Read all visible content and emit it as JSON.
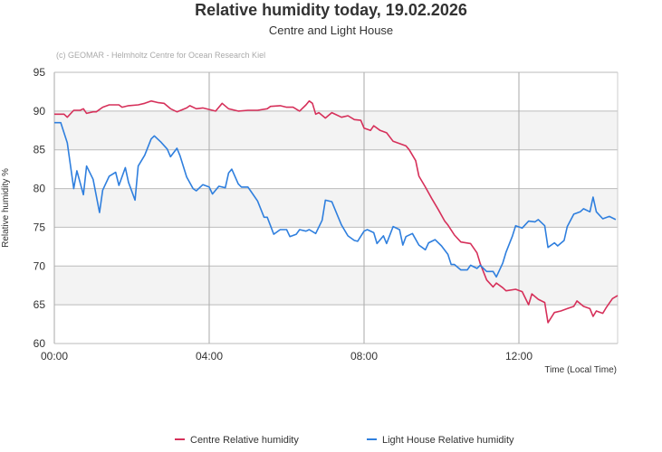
{
  "chart_data": {
    "type": "line",
    "title": "Relative humidity today, 19.02.2026",
    "subtitle": "Centre and Light House",
    "credit": "(c) GEOMAR - Helmholtz Centre for Ocean Research Kiel",
    "xlabel": "Time (Local Time)",
    "ylabel": "Relative humidity %",
    "xlim": [
      "00:00",
      "14:33"
    ],
    "ylim": [
      60,
      95
    ],
    "x_ticks": [
      "00:00",
      "04:00",
      "08:00",
      "12:00"
    ],
    "y_ticks": [
      60,
      65,
      70,
      75,
      80,
      85,
      90,
      95
    ],
    "grid": true,
    "legend_position": "bottom",
    "colors": {
      "Centre": "#d6305a",
      "Light House": "#2f7fde",
      "band": "#f3f3f3"
    },
    "series": [
      {
        "name": "Centre Relative humidity",
        "color": "#d6305a",
        "points": [
          [
            "00:00",
            89.6
          ],
          [
            "00:15",
            89.6
          ],
          [
            "00:20",
            89.2
          ],
          [
            "00:30",
            90.1
          ],
          [
            "00:40",
            90.1
          ],
          [
            "00:45",
            90.3
          ],
          [
            "00:50",
            89.7
          ],
          [
            "01:00",
            89.9
          ],
          [
            "01:05",
            89.9
          ],
          [
            "01:15",
            90.5
          ],
          [
            "01:25",
            90.8
          ],
          [
            "01:40",
            90.8
          ],
          [
            "01:45",
            90.5
          ],
          [
            "01:55",
            90.7
          ],
          [
            "02:10",
            90.8
          ],
          [
            "02:20",
            91.0
          ],
          [
            "02:30",
            91.3
          ],
          [
            "02:40",
            91.1
          ],
          [
            "02:50",
            91.0
          ],
          [
            "03:00",
            90.3
          ],
          [
            "03:10",
            89.9
          ],
          [
            "03:25",
            90.4
          ],
          [
            "03:30",
            90.7
          ],
          [
            "03:40",
            90.3
          ],
          [
            "03:50",
            90.4
          ],
          [
            "04:10",
            90.0
          ],
          [
            "04:20",
            91.0
          ],
          [
            "04:30",
            90.3
          ],
          [
            "04:45",
            90.0
          ],
          [
            "05:00",
            90.1
          ],
          [
            "05:15",
            90.1
          ],
          [
            "05:30",
            90.3
          ],
          [
            "05:35",
            90.6
          ],
          [
            "05:50",
            90.7
          ],
          [
            "06:00",
            90.5
          ],
          [
            "06:10",
            90.5
          ],
          [
            "06:20",
            90.0
          ],
          [
            "06:30",
            90.8
          ],
          [
            "06:35",
            91.3
          ],
          [
            "06:40",
            91.0
          ],
          [
            "06:45",
            89.6
          ],
          [
            "06:50",
            89.8
          ],
          [
            "07:00",
            89.1
          ],
          [
            "07:10",
            89.8
          ],
          [
            "07:25",
            89.2
          ],
          [
            "07:35",
            89.4
          ],
          [
            "07:45",
            88.9
          ],
          [
            "07:55",
            88.8
          ],
          [
            "08:00",
            87.8
          ],
          [
            "08:10",
            87.5
          ],
          [
            "08:15",
            88.1
          ],
          [
            "08:25",
            87.5
          ],
          [
            "08:35",
            87.2
          ],
          [
            "08:45",
            86.1
          ],
          [
            "09:05",
            85.5
          ],
          [
            "09:10",
            85.0
          ],
          [
            "09:20",
            83.6
          ],
          [
            "09:25",
            81.6
          ],
          [
            "09:35",
            80.2
          ],
          [
            "09:45",
            78.7
          ],
          [
            "09:55",
            77.3
          ],
          [
            "10:05",
            75.8
          ],
          [
            "10:10",
            75.3
          ],
          [
            "10:20",
            74.0
          ],
          [
            "10:30",
            73.1
          ],
          [
            "10:45",
            72.9
          ],
          [
            "10:55",
            71.7
          ],
          [
            "11:00",
            70.3
          ],
          [
            "11:10",
            68.2
          ],
          [
            "11:20",
            67.3
          ],
          [
            "11:25",
            67.8
          ],
          [
            "11:35",
            67.2
          ],
          [
            "11:40",
            66.8
          ],
          [
            "11:55",
            67.0
          ],
          [
            "12:05",
            66.7
          ],
          [
            "12:15",
            65.0
          ],
          [
            "12:20",
            66.4
          ],
          [
            "12:30",
            65.7
          ],
          [
            "12:40",
            65.3
          ],
          [
            "12:45",
            62.7
          ],
          [
            "12:55",
            64.0
          ],
          [
            "13:05",
            64.2
          ],
          [
            "13:15",
            64.5
          ],
          [
            "13:25",
            64.8
          ],
          [
            "13:30",
            65.5
          ],
          [
            "13:40",
            64.8
          ],
          [
            "13:50",
            64.5
          ],
          [
            "13:55",
            63.5
          ],
          [
            "14:00",
            64.2
          ],
          [
            "14:10",
            63.9
          ],
          [
            "14:15",
            64.6
          ],
          [
            "14:25",
            65.8
          ],
          [
            "14:33",
            66.2
          ]
        ]
      },
      {
        "name": "Light House Relative humidity",
        "color": "#2f7fde",
        "points": [
          [
            "00:00",
            88.5
          ],
          [
            "00:10",
            88.5
          ],
          [
            "00:20",
            85.9
          ],
          [
            "00:30",
            80.0
          ],
          [
            "00:35",
            82.3
          ],
          [
            "00:45",
            79.2
          ],
          [
            "00:50",
            82.9
          ],
          [
            "01:00",
            81.2
          ],
          [
            "01:10",
            76.9
          ],
          [
            "01:15",
            79.8
          ],
          [
            "01:25",
            81.6
          ],
          [
            "01:35",
            82.1
          ],
          [
            "01:40",
            80.4
          ],
          [
            "01:50",
            82.7
          ],
          [
            "01:55",
            80.8
          ],
          [
            "02:05",
            78.5
          ],
          [
            "02:10",
            82.9
          ],
          [
            "02:20",
            84.3
          ],
          [
            "02:30",
            86.4
          ],
          [
            "02:35",
            86.8
          ],
          [
            "02:45",
            86.0
          ],
          [
            "02:55",
            85.1
          ],
          [
            "03:00",
            84.1
          ],
          [
            "03:10",
            85.2
          ],
          [
            "03:15",
            84.2
          ],
          [
            "03:25",
            81.5
          ],
          [
            "03:35",
            80.0
          ],
          [
            "03:40",
            79.7
          ],
          [
            "03:50",
            80.5
          ],
          [
            "04:00",
            80.2
          ],
          [
            "04:05",
            79.3
          ],
          [
            "04:15",
            80.3
          ],
          [
            "04:25",
            80.1
          ],
          [
            "04:30",
            82.0
          ],
          [
            "04:35",
            82.5
          ],
          [
            "04:45",
            80.6
          ],
          [
            "04:50",
            80.2
          ],
          [
            "05:00",
            80.2
          ],
          [
            "05:05",
            79.6
          ],
          [
            "05:15",
            78.4
          ],
          [
            "05:25",
            76.3
          ],
          [
            "05:30",
            76.3
          ],
          [
            "05:40",
            74.1
          ],
          [
            "05:50",
            74.7
          ],
          [
            "06:00",
            74.7
          ],
          [
            "06:05",
            73.8
          ],
          [
            "06:15",
            74.1
          ],
          [
            "06:20",
            74.7
          ],
          [
            "06:30",
            74.5
          ],
          [
            "06:35",
            74.7
          ],
          [
            "06:45",
            74.2
          ],
          [
            "06:55",
            75.9
          ],
          [
            "07:00",
            78.5
          ],
          [
            "07:10",
            78.3
          ],
          [
            "07:20",
            76.3
          ],
          [
            "07:25",
            75.3
          ],
          [
            "07:35",
            73.9
          ],
          [
            "07:45",
            73.3
          ],
          [
            "07:50",
            73.2
          ],
          [
            "08:00",
            74.5
          ],
          [
            "08:05",
            74.7
          ],
          [
            "08:15",
            74.3
          ],
          [
            "08:20",
            72.9
          ],
          [
            "08:30",
            73.9
          ],
          [
            "08:35",
            72.9
          ],
          [
            "08:45",
            75.1
          ],
          [
            "08:55",
            74.7
          ],
          [
            "09:00",
            72.7
          ],
          [
            "09:05",
            73.8
          ],
          [
            "09:15",
            74.2
          ],
          [
            "09:25",
            72.7
          ],
          [
            "09:35",
            72.1
          ],
          [
            "09:40",
            73.0
          ],
          [
            "09:50",
            73.4
          ],
          [
            "10:00",
            72.6
          ],
          [
            "10:10",
            71.5
          ],
          [
            "10:15",
            70.2
          ],
          [
            "10:20",
            70.2
          ],
          [
            "10:30",
            69.5
          ],
          [
            "10:40",
            69.5
          ],
          [
            "10:45",
            70.1
          ],
          [
            "10:55",
            69.7
          ],
          [
            "11:00",
            70.1
          ],
          [
            "11:10",
            69.3
          ],
          [
            "11:20",
            69.3
          ],
          [
            "11:25",
            68.6
          ],
          [
            "11:35",
            70.4
          ],
          [
            "11:40",
            71.8
          ],
          [
            "11:50",
            73.9
          ],
          [
            "11:55",
            75.2
          ],
          [
            "12:05",
            74.9
          ],
          [
            "12:15",
            75.8
          ],
          [
            "12:25",
            75.7
          ],
          [
            "12:30",
            76.0
          ],
          [
            "12:40",
            75.2
          ],
          [
            "12:45",
            72.4
          ],
          [
            "12:55",
            73.0
          ],
          [
            "13:00",
            72.6
          ],
          [
            "13:10",
            73.3
          ],
          [
            "13:15",
            75.1
          ],
          [
            "13:25",
            76.7
          ],
          [
            "13:35",
            77.0
          ],
          [
            "13:40",
            77.4
          ],
          [
            "13:50",
            77.0
          ],
          [
            "13:55",
            78.9
          ],
          [
            "14:00",
            77.0
          ],
          [
            "14:10",
            76.1
          ],
          [
            "14:20",
            76.4
          ],
          [
            "14:30",
            76.0
          ]
        ]
      }
    ]
  }
}
